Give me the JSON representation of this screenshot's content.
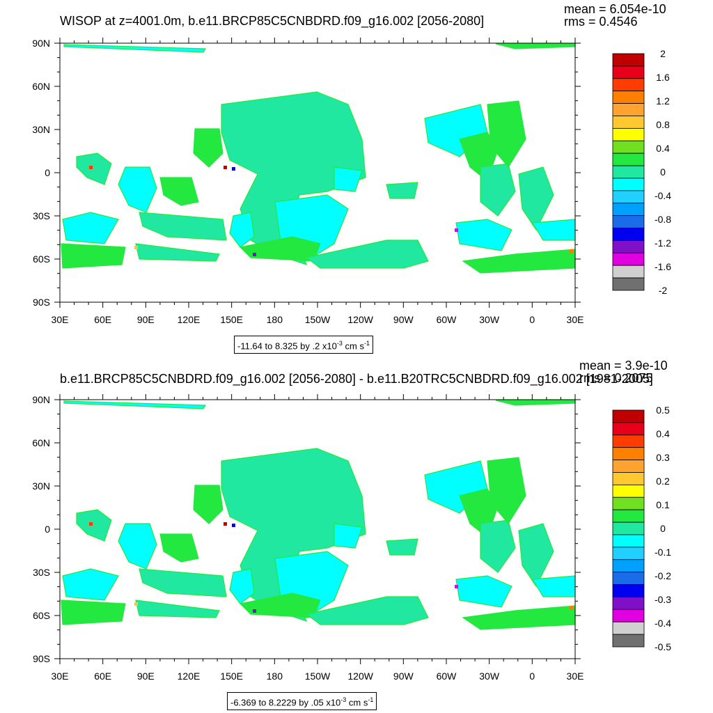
{
  "panels": [
    {
      "title": "WISOP at z=4001.0m, b.e11.BRCP85C5CNBDRD.f09_g16.002 [2056-2080]",
      "stats": {
        "mean": "mean = 6.054e-10",
        "rms": "rms = 0.4546"
      },
      "lat_labels": [
        "90N",
        "60N",
        "30N",
        "0",
        "30S",
        "60S",
        "90S"
      ],
      "lon_labels": [
        "30E",
        "60E",
        "90E",
        "120E",
        "150E",
        "180",
        "150W",
        "120W",
        "90W",
        "60W",
        "30W",
        "0",
        "30E"
      ],
      "colorbar_labels": [
        "2",
        "1.6",
        "1.2",
        "0.8",
        "0.4",
        "0",
        "-0.4",
        "-0.8",
        "-1.2",
        "-1.6",
        "-2"
      ],
      "contour_info": {
        "prefix": "-11.64 to 8.325 by .2 x10",
        "exp": "-3",
        "unit": " cm s",
        "unit_exp": "-1"
      }
    },
    {
      "title": "b.e11.BRCP85C5CNBDRD.f09_g16.002 [2056-2080] - b.e11.B20TRC5CNBDRD.f09_g16.002 [1981-2005]",
      "stats": {
        "mean": "mean = 3.9e-10",
        "rms": "rms = 0.2075"
      },
      "lat_labels": [
        "90N",
        "60N",
        "30N",
        "0",
        "30S",
        "60S",
        "90S"
      ],
      "lon_labels": [
        "30E",
        "60E",
        "90E",
        "120E",
        "150E",
        "180",
        "150W",
        "120W",
        "90W",
        "60W",
        "30W",
        "0",
        "30E"
      ],
      "colorbar_labels": [
        "0.5",
        "0.4",
        "0.3",
        "0.2",
        "0.1",
        "0",
        "-0.1",
        "-0.2",
        "-0.3",
        "-0.4",
        "-0.5"
      ],
      "contour_info": {
        "prefix": "-6.369 to 8.2229 by .05 x10",
        "exp": "-3",
        "unit": " cm s",
        "unit_exp": "-1"
      }
    }
  ],
  "colorbar_colors": [
    "#c00000",
    "#e8001a",
    "#ff3c00",
    "#ff7f00",
    "#ffa330",
    "#ffc830",
    "#ffff00",
    "#70e020",
    "#22e840",
    "#20e8a0",
    "#00ffff",
    "#20d0ff",
    "#00a0ff",
    "#1a6ce8",
    "#0000f0",
    "#8010c8",
    "#e000e0",
    "#d0d0d0",
    "#707070"
  ],
  "map_colors": {
    "ocean": "#00ffff",
    "alt": "#22e840",
    "blend": "#20e8a0"
  }
}
